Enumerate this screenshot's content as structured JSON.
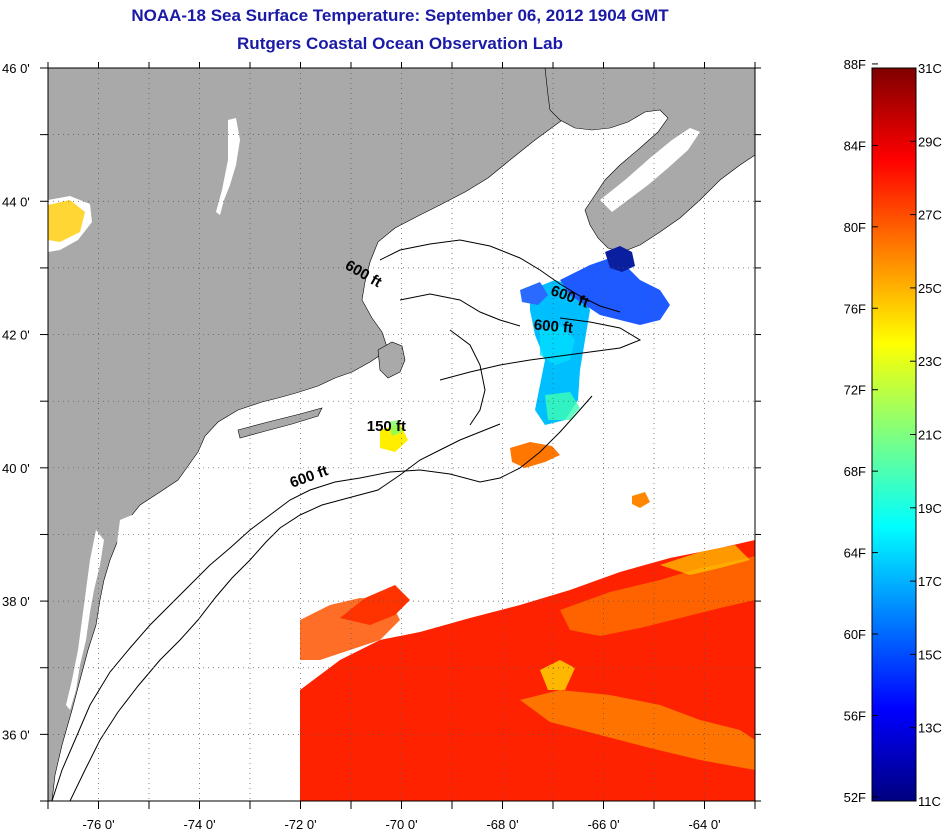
{
  "title": {
    "line1": "NOAA-18 Sea Surface Temperature:  September 06, 2012 1904 GMT",
    "line2": "Rutgers Coastal Ocean Observation Lab"
  },
  "map": {
    "lon_range": [
      -77,
      -63
    ],
    "lat_range": [
      35,
      46
    ],
    "lon_ticks": [
      {
        "value": -76,
        "label": "-76 0'"
      },
      {
        "value": -74,
        "label": "-74 0'"
      },
      {
        "value": -72,
        "label": "-72 0'"
      },
      {
        "value": -70,
        "label": "-70 0'"
      },
      {
        "value": -68,
        "label": "-68 0'"
      },
      {
        "value": -66,
        "label": "-66 0'"
      },
      {
        "value": -64,
        "label": "-64 0'"
      }
    ],
    "lat_ticks": [
      {
        "value": 46,
        "label": "46 0'"
      },
      {
        "value": 44,
        "label": "44 0'"
      },
      {
        "value": 42,
        "label": "42 0'"
      },
      {
        "value": 40,
        "label": "40 0'"
      },
      {
        "value": 38,
        "label": "38 0'"
      },
      {
        "value": 36,
        "label": "36 0'"
      }
    ],
    "land_color": "#a9a9a9",
    "ocean_color": "#ffffff",
    "contour_labels": [
      {
        "text": "600 ft",
        "lon": -70.8,
        "lat": 42.85,
        "rotate": 30
      },
      {
        "text": "600 ft",
        "lon": -66.7,
        "lat": 42.5,
        "rotate": 20
      },
      {
        "text": "600 ft",
        "lon": -67.0,
        "lat": 42.05,
        "rotate": 5
      },
      {
        "text": "150 ft",
        "lon": -70.3,
        "lat": 40.55,
        "rotate": 0
      },
      {
        "text": "600 ft",
        "lon": -71.8,
        "lat": 39.8,
        "rotate": -20
      }
    ]
  },
  "colorbar": {
    "min_c": 11,
    "max_c": 31,
    "left_labels": [
      "88F",
      "84F",
      "80F",
      "76F",
      "72F",
      "68F",
      "64F",
      "60F",
      "56F",
      "52F"
    ],
    "right_labels": [
      "31C",
      "29C",
      "27C",
      "25C",
      "23C",
      "21C",
      "19C",
      "17C",
      "15C",
      "13C",
      "11C"
    ],
    "colors": [
      "#00007f",
      "#0000ff",
      "#007fff",
      "#00ffff",
      "#7fff7f",
      "#ffff00",
      "#ff7f00",
      "#ff0000",
      "#7f0000"
    ]
  }
}
